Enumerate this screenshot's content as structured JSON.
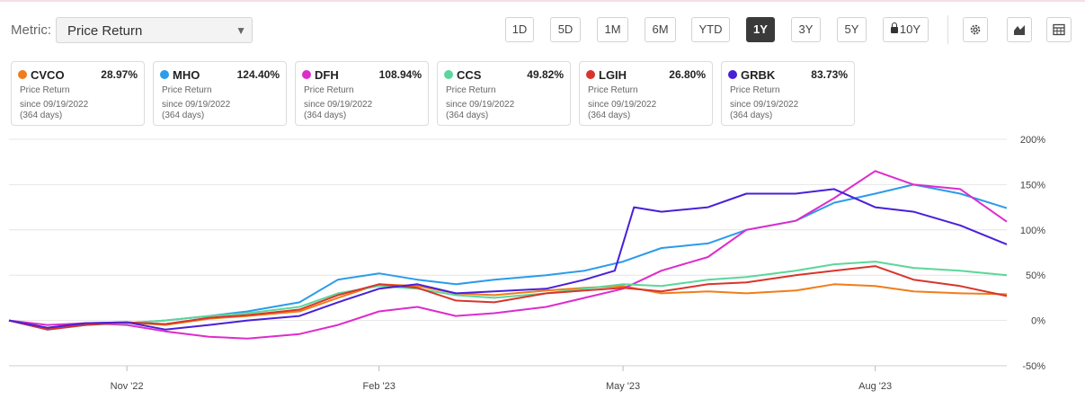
{
  "toolbar": {
    "metric_label": "Metric:",
    "metric_value": "Price Return",
    "periods": [
      "1D",
      "5D",
      "1M",
      "6M",
      "YTD",
      "1Y",
      "3Y",
      "5Y",
      "10Y"
    ],
    "active_period": "1Y",
    "locked_period": "10Y",
    "icons": [
      "gear-icon",
      "chart-type-icon",
      "table-icon"
    ]
  },
  "cards": [
    {
      "symbol": "CVCO",
      "change": "28.97%",
      "metric": "Price Return",
      "since": "since 09/19/2022",
      "days": "(364 days)",
      "color": "#f07d1a"
    },
    {
      "symbol": "MHO",
      "change": "124.40%",
      "metric": "Price Return",
      "since": "since 09/19/2022",
      "days": "(364 days)",
      "color": "#2b9bea"
    },
    {
      "symbol": "DFH",
      "change": "108.94%",
      "metric": "Price Return",
      "since": "since 09/19/2022",
      "days": "(364 days)",
      "color": "#dd2ccd"
    },
    {
      "symbol": "CCS",
      "change": "49.82%",
      "metric": "Price Return",
      "since": "since 09/19/2022",
      "days": "(364 days)",
      "color": "#5cd69b"
    },
    {
      "symbol": "LGIH",
      "change": "26.80%",
      "metric": "Price Return",
      "since": "since 09/19/2022",
      "days": "(364 days)",
      "color": "#d9342b"
    },
    {
      "symbol": "GRBK",
      "change": "83.73%",
      "metric": "Price Return",
      "since": "since 09/19/2022",
      "days": "(364 days)",
      "color": "#4a1fd8"
    }
  ],
  "chart_data": {
    "type": "line",
    "x_range": [
      "2022-09-19",
      "2023-09-18"
    ],
    "x_ticks": [
      {
        "label": "Nov '22",
        "date": "2022-11-01"
      },
      {
        "label": "Feb '23",
        "date": "2023-02-01"
      },
      {
        "label": "May '23",
        "date": "2023-05-01"
      },
      {
        "label": "Aug '23",
        "date": "2023-08-01"
      }
    ],
    "y_ticks": [
      -50,
      0,
      50,
      100,
      150,
      200
    ],
    "y_tick_labels": [
      "-50%",
      "0%",
      "50%",
      "100%",
      "150%",
      "200%"
    ],
    "ylim": [
      -50,
      200
    ],
    "grid": true,
    "series": [
      {
        "name": "CVCO",
        "color": "#f07d1a",
        "points": [
          [
            "2022-09-19",
            0
          ],
          [
            "2022-10-03",
            -8
          ],
          [
            "2022-10-17",
            -3
          ],
          [
            "2022-11-01",
            -2
          ],
          [
            "2022-11-15",
            -5
          ],
          [
            "2022-12-01",
            2
          ],
          [
            "2022-12-15",
            5
          ],
          [
            "2023-01-03",
            10
          ],
          [
            "2023-01-17",
            25
          ],
          [
            "2023-02-01",
            40
          ],
          [
            "2023-02-15",
            38
          ],
          [
            "2023-03-01",
            30
          ],
          [
            "2023-03-15",
            28
          ],
          [
            "2023-04-03",
            33
          ],
          [
            "2023-04-17",
            36
          ],
          [
            "2023-05-01",
            38
          ],
          [
            "2023-05-15",
            30
          ],
          [
            "2023-06-01",
            32
          ],
          [
            "2023-06-15",
            30
          ],
          [
            "2023-07-03",
            33
          ],
          [
            "2023-07-17",
            40
          ],
          [
            "2023-08-01",
            38
          ],
          [
            "2023-08-15",
            32
          ],
          [
            "2023-09-01",
            30
          ],
          [
            "2023-09-18",
            29
          ]
        ]
      },
      {
        "name": "MHO",
        "color": "#2b9bea",
        "points": [
          [
            "2022-09-19",
            0
          ],
          [
            "2022-10-03",
            -10
          ],
          [
            "2022-10-17",
            -5
          ],
          [
            "2022-11-01",
            -3
          ],
          [
            "2022-11-15",
            0
          ],
          [
            "2022-12-01",
            5
          ],
          [
            "2022-12-15",
            10
          ],
          [
            "2023-01-03",
            20
          ],
          [
            "2023-01-17",
            45
          ],
          [
            "2023-02-01",
            52
          ],
          [
            "2023-02-15",
            45
          ],
          [
            "2023-03-01",
            40
          ],
          [
            "2023-03-15",
            45
          ],
          [
            "2023-04-03",
            50
          ],
          [
            "2023-04-17",
            55
          ],
          [
            "2023-05-01",
            65
          ],
          [
            "2023-05-15",
            80
          ],
          [
            "2023-06-01",
            85
          ],
          [
            "2023-06-15",
            100
          ],
          [
            "2023-07-03",
            110
          ],
          [
            "2023-07-17",
            130
          ],
          [
            "2023-08-01",
            140
          ],
          [
            "2023-08-15",
            150
          ],
          [
            "2023-09-01",
            140
          ],
          [
            "2023-09-18",
            124
          ]
        ]
      },
      {
        "name": "DFH",
        "color": "#dd2ccd",
        "points": [
          [
            "2022-09-19",
            0
          ],
          [
            "2022-10-03",
            -5
          ],
          [
            "2022-10-17",
            -3
          ],
          [
            "2022-11-01",
            -5
          ],
          [
            "2022-11-15",
            -12
          ],
          [
            "2022-12-01",
            -18
          ],
          [
            "2022-12-15",
            -20
          ],
          [
            "2023-01-03",
            -15
          ],
          [
            "2023-01-17",
            -5
          ],
          [
            "2023-02-01",
            10
          ],
          [
            "2023-02-15",
            15
          ],
          [
            "2023-03-01",
            5
          ],
          [
            "2023-03-15",
            8
          ],
          [
            "2023-04-03",
            15
          ],
          [
            "2023-04-17",
            25
          ],
          [
            "2023-05-01",
            35
          ],
          [
            "2023-05-15",
            55
          ],
          [
            "2023-06-01",
            70
          ],
          [
            "2023-06-15",
            100
          ],
          [
            "2023-07-03",
            110
          ],
          [
            "2023-07-17",
            135
          ],
          [
            "2023-08-01",
            165
          ],
          [
            "2023-08-15",
            150
          ],
          [
            "2023-09-01",
            145
          ],
          [
            "2023-09-18",
            109
          ]
        ]
      },
      {
        "name": "CCS",
        "color": "#5cd69b",
        "points": [
          [
            "2022-09-19",
            0
          ],
          [
            "2022-10-03",
            -8
          ],
          [
            "2022-10-17",
            -4
          ],
          [
            "2022-11-01",
            -3
          ],
          [
            "2022-11-15",
            0
          ],
          [
            "2022-12-01",
            5
          ],
          [
            "2022-12-15",
            8
          ],
          [
            "2023-01-03",
            15
          ],
          [
            "2023-01-17",
            30
          ],
          [
            "2023-02-01",
            38
          ],
          [
            "2023-02-15",
            35
          ],
          [
            "2023-03-01",
            28
          ],
          [
            "2023-03-15",
            25
          ],
          [
            "2023-04-03",
            30
          ],
          [
            "2023-04-17",
            35
          ],
          [
            "2023-05-01",
            40
          ],
          [
            "2023-05-15",
            38
          ],
          [
            "2023-06-01",
            45
          ],
          [
            "2023-06-15",
            48
          ],
          [
            "2023-07-03",
            55
          ],
          [
            "2023-07-17",
            62
          ],
          [
            "2023-08-01",
            65
          ],
          [
            "2023-08-15",
            58
          ],
          [
            "2023-09-01",
            55
          ],
          [
            "2023-09-18",
            50
          ]
        ]
      },
      {
        "name": "LGIH",
        "color": "#d9342b",
        "points": [
          [
            "2022-09-19",
            0
          ],
          [
            "2022-10-03",
            -10
          ],
          [
            "2022-10-17",
            -5
          ],
          [
            "2022-11-01",
            -2
          ],
          [
            "2022-11-15",
            -4
          ],
          [
            "2022-12-01",
            3
          ],
          [
            "2022-12-15",
            6
          ],
          [
            "2023-01-03",
            12
          ],
          [
            "2023-01-17",
            28
          ],
          [
            "2023-02-01",
            40
          ],
          [
            "2023-02-15",
            36
          ],
          [
            "2023-03-01",
            22
          ],
          [
            "2023-03-15",
            20
          ],
          [
            "2023-04-03",
            30
          ],
          [
            "2023-04-17",
            33
          ],
          [
            "2023-05-01",
            36
          ],
          [
            "2023-05-15",
            32
          ],
          [
            "2023-06-01",
            40
          ],
          [
            "2023-06-15",
            42
          ],
          [
            "2023-07-03",
            50
          ],
          [
            "2023-07-17",
            55
          ],
          [
            "2023-08-01",
            60
          ],
          [
            "2023-08-15",
            45
          ],
          [
            "2023-09-01",
            38
          ],
          [
            "2023-09-18",
            27
          ]
        ]
      },
      {
        "name": "GRBK",
        "color": "#4a1fd8",
        "points": [
          [
            "2022-09-19",
            0
          ],
          [
            "2022-10-03",
            -8
          ],
          [
            "2022-10-17",
            -3
          ],
          [
            "2022-11-01",
            -2
          ],
          [
            "2022-11-15",
            -10
          ],
          [
            "2022-12-01",
            -5
          ],
          [
            "2022-12-15",
            0
          ],
          [
            "2023-01-03",
            5
          ],
          [
            "2023-01-17",
            20
          ],
          [
            "2023-02-01",
            35
          ],
          [
            "2023-02-15",
            40
          ],
          [
            "2023-03-01",
            30
          ],
          [
            "2023-03-15",
            32
          ],
          [
            "2023-04-03",
            35
          ],
          [
            "2023-04-17",
            45
          ],
          [
            "2023-04-28",
            55
          ],
          [
            "2023-05-01",
            85
          ],
          [
            "2023-05-05",
            125
          ],
          [
            "2023-05-15",
            120
          ],
          [
            "2023-06-01",
            125
          ],
          [
            "2023-06-15",
            140
          ],
          [
            "2023-07-03",
            140
          ],
          [
            "2023-07-17",
            145
          ],
          [
            "2023-08-01",
            125
          ],
          [
            "2023-08-15",
            120
          ],
          [
            "2023-09-01",
            105
          ],
          [
            "2023-09-18",
            84
          ]
        ]
      }
    ]
  }
}
